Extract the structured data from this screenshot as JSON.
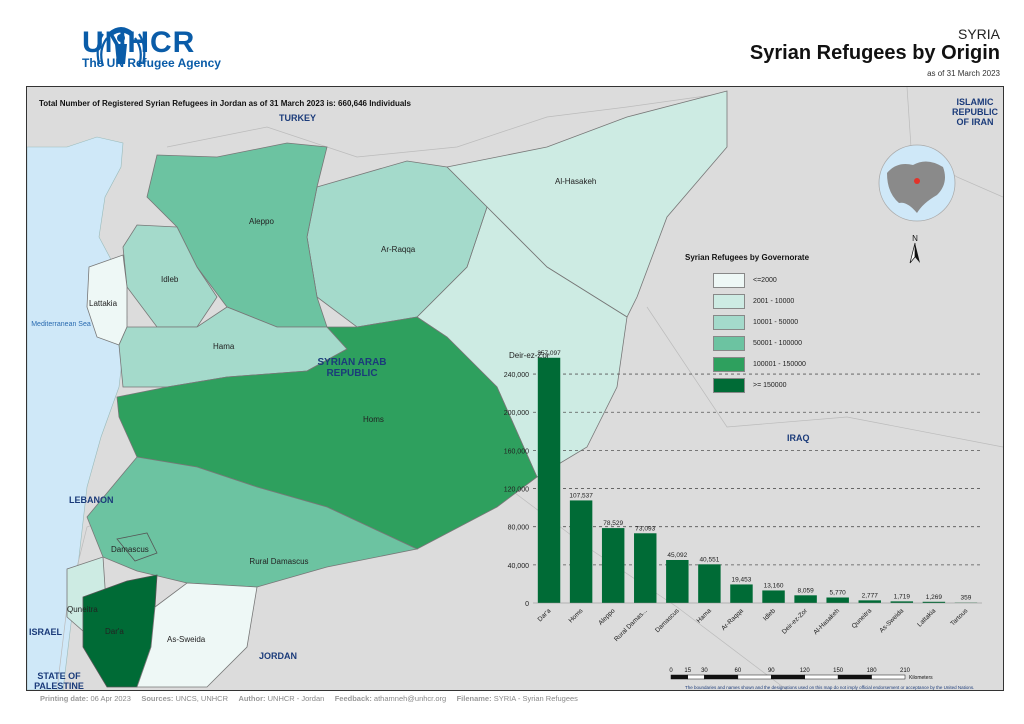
{
  "header": {
    "logo_text": "UNHCR",
    "logo_sub": "The UN Refugee Agency",
    "country": "SYRIA",
    "title": "Syrian Refugees by Origin",
    "date": "as of 31 March 2023"
  },
  "map": {
    "total_text": "Total Number of Registered Syrian Refugees in Jordan as of 31 March 2023 is: 660,646 Individuals",
    "countries": [
      "TURKEY",
      "ISLAMIC REPUBLIC OF IRAN",
      "SYRIAN ARAB REPUBLIC",
      "IRAQ",
      "LEBANON",
      "ISRAEL",
      "STATE OF PALESTINE",
      "JORDAN"
    ],
    "sea": "Mediterranean Sea",
    "governorates": [
      "Al-Hasakeh",
      "Aleppo",
      "Ar-Raqqa",
      "Idleb",
      "Lattakia",
      "Hama",
      "Deir-ez-Zor",
      "Homs",
      "Damascus",
      "Rural Damascus",
      "Quneitra",
      "Dar'a",
      "As-Sweida"
    ],
    "north": "N",
    "colors": {
      "lt2000": "#eef8f6",
      "r2001": "#cdebe3",
      "r10001": "#a4dacb",
      "r50001": "#6cc3a1",
      "r100001": "#2ea05e",
      "gt150000": "#006b36",
      "land": "#dcdcdc",
      "water": "#cfe8f8"
    }
  },
  "legend": {
    "title": "Syrian Refugees by Governorate",
    "items": [
      "<=2000",
      "2001 - 10000",
      "10001 - 50000",
      "50001 - 100000",
      "100001 - 150000",
      ">= 150000"
    ]
  },
  "chart_data": {
    "type": "bar",
    "categories": [
      "Dar'a",
      "Homs",
      "Aleppo",
      "Rural Damas...",
      "Damascus",
      "Hama",
      "Ar-Raqqa",
      "Idleb",
      "Deir-ez-Zor",
      "Al-Hasakeh",
      "Quneitra",
      "As-Sweida",
      "Lattakia",
      "Tartous"
    ],
    "values": [
      257097,
      107537,
      78529,
      73093,
      45092,
      40551,
      19453,
      13160,
      8059,
      5770,
      2777,
      1719,
      1269,
      359
    ],
    "value_labels": [
      "257,097",
      "107,537",
      "78,529",
      "73,093",
      "45,092",
      "40,551",
      "19,453",
      "13,160",
      "8,059",
      "5,770",
      "2,777",
      "1,719",
      "1,269",
      "359"
    ],
    "y_ticks": [
      0,
      40000,
      80000,
      120000,
      160000,
      200000,
      240000
    ],
    "y_tick_labels": [
      "0",
      "40,000",
      "80,000",
      "120,000",
      "160,000",
      "200,000",
      "240,000"
    ],
    "ylim": [
      0,
      260000
    ],
    "bar_color": "#006b36",
    "grid": true
  },
  "scale": {
    "ticks": [
      "0",
      "15",
      "30",
      "60",
      "90",
      "120",
      "150",
      "180",
      "210"
    ],
    "unit": "Kilometers"
  },
  "disclaimer": "The boundaries and names shown and the designations used on this map do not imply official endorsement or acceptance by the United Nations.",
  "footer": {
    "print_label": "Printing date:",
    "print_value": "06 Apr 2023",
    "sources_label": "Sources:",
    "sources_value": "UNCS, UNHCR",
    "author_label": "Author:",
    "author_value": "UNHCR - Jordan",
    "feedback_label": "Feedback:",
    "feedback_value": "athamneh@unhcr.org",
    "filename_label": "Filename:",
    "filename_value": "SYRIA - Syrian Refugees"
  }
}
